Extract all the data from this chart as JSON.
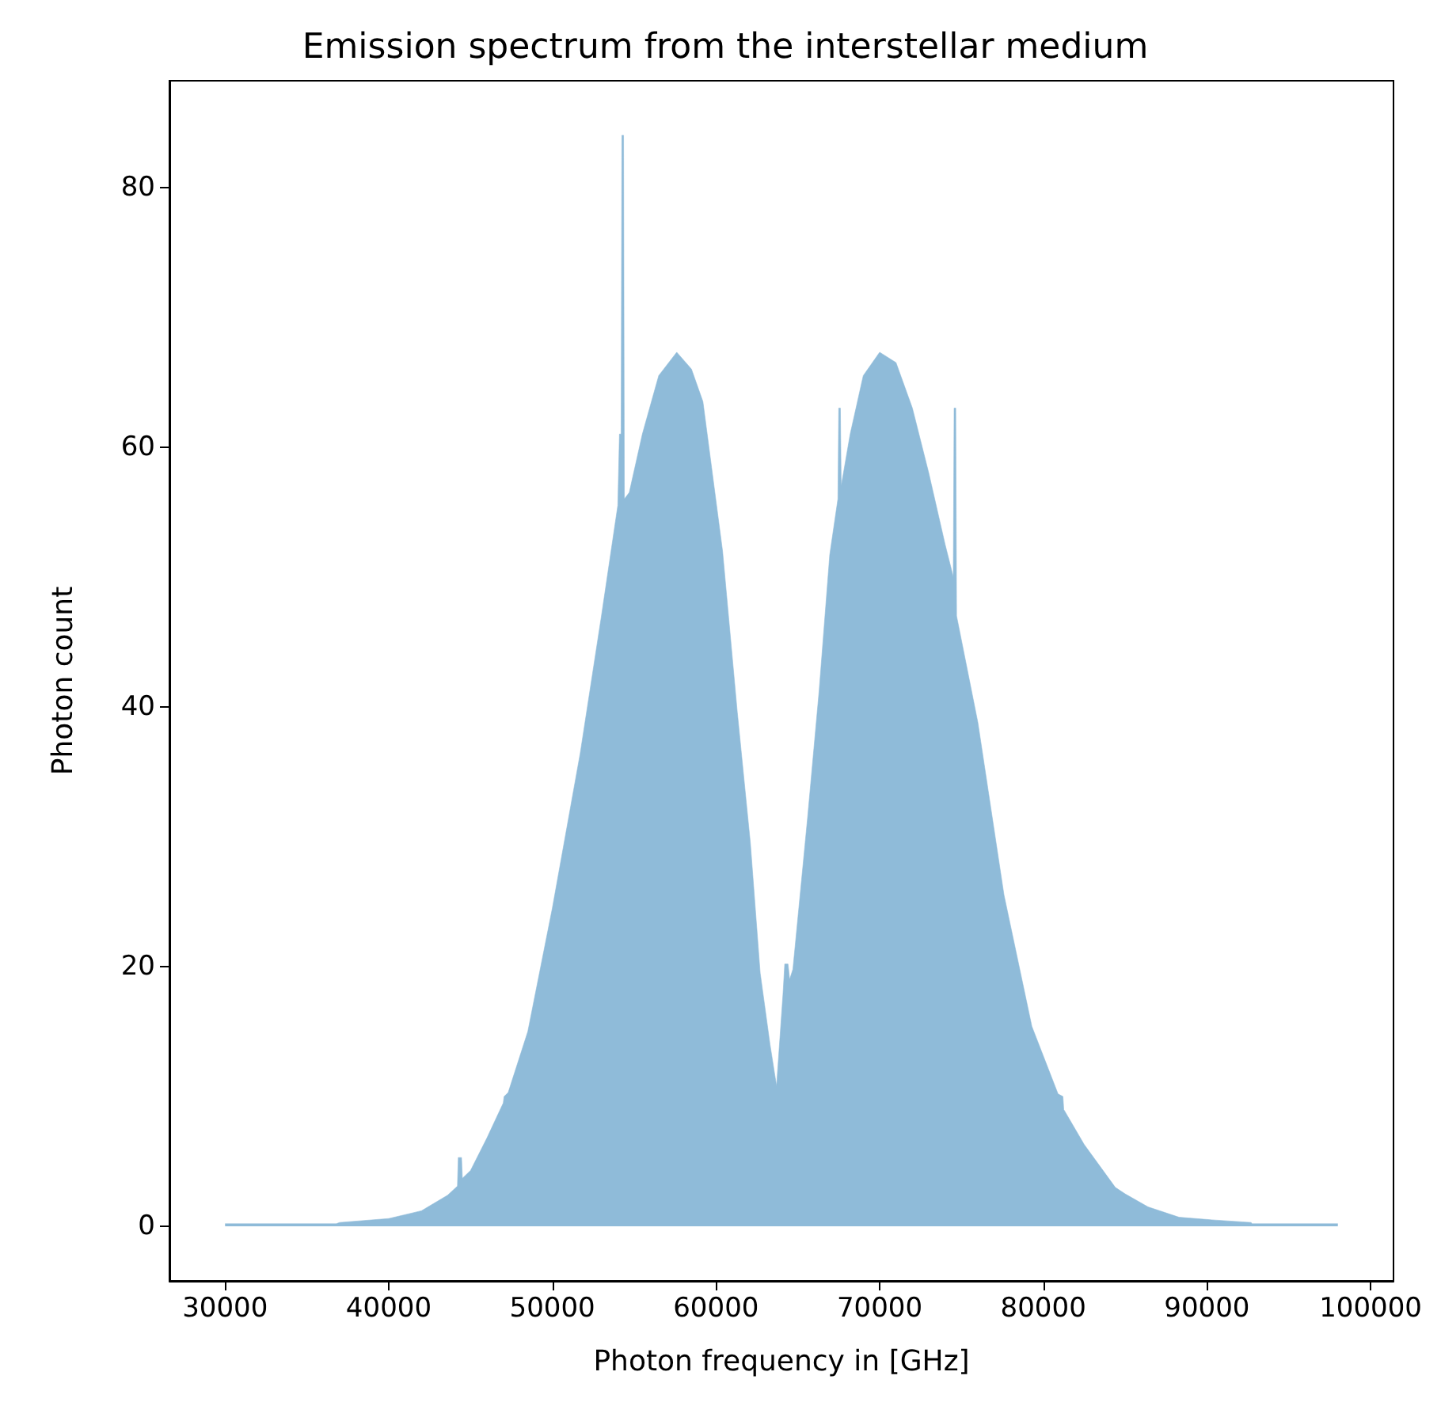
{
  "chart_data": {
    "type": "area",
    "title": "Emission spectrum from the interstellar medium",
    "xlabel": "Photon frequency in [GHz]",
    "ylabel": "Photon count",
    "x": [
      30000,
      36800,
      37000,
      40000,
      42000,
      43600,
      44200,
      44250,
      44450,
      44500,
      45000,
      46000,
      47000,
      47050,
      47300,
      48500,
      50000,
      51700,
      53000,
      54000,
      54100,
      54200,
      54250,
      54350,
      54400,
      54700,
      55500,
      56500,
      57600,
      58500,
      59200,
      60400,
      61300,
      62100,
      62700,
      63300,
      63700,
      64100,
      64200,
      64400,
      64500,
      64700,
      65600,
      66300,
      66950,
      67450,
      67500,
      67600,
      67650,
      68200,
      69000,
      70000,
      71000,
      72000,
      73000,
      74000,
      74500,
      74550,
      74650,
      74700,
      76000,
      77600,
      79300,
      80900,
      81200,
      81250,
      82500,
      84400,
      85000,
      86400,
      88300,
      90300,
      92700,
      92750,
      98000
    ],
    "series": [
      {
        "color": "#8fbbd9",
        "values": [
          0.2,
          0.2,
          0.3,
          0.6,
          1.2,
          2.4,
          3.1,
          5.3,
          5.3,
          3.7,
          4.3,
          6.8,
          9.5,
          10,
          10.3,
          15,
          24.5,
          36.4,
          47,
          55.5,
          61,
          61,
          84,
          84,
          56,
          56.5,
          61,
          65.5,
          67.3,
          66,
          63.5,
          52,
          39.6,
          29.5,
          19.5,
          14,
          10.8,
          18,
          20.2,
          20.2,
          19,
          19.8,
          31.5,
          41.2,
          51.7,
          56,
          63,
          63,
          57,
          61,
          65.5,
          67.3,
          66.5,
          63,
          58,
          52.5,
          50,
          63,
          63,
          47,
          38.8,
          25.5,
          15.4,
          10.2,
          10,
          9,
          6.3,
          3,
          2.5,
          1.5,
          0.7,
          0.5,
          0.3,
          0.2,
          0.2
        ]
      }
    ],
    "xlim": [
      26600,
      101400
    ],
    "ylim": [
      -4.2,
      88.2
    ],
    "xticks": [
      30000,
      40000,
      50000,
      60000,
      70000,
      80000,
      90000,
      100000
    ],
    "yticks": [
      0,
      20,
      40,
      60,
      80
    ],
    "marker": "none",
    "grid": false
  }
}
